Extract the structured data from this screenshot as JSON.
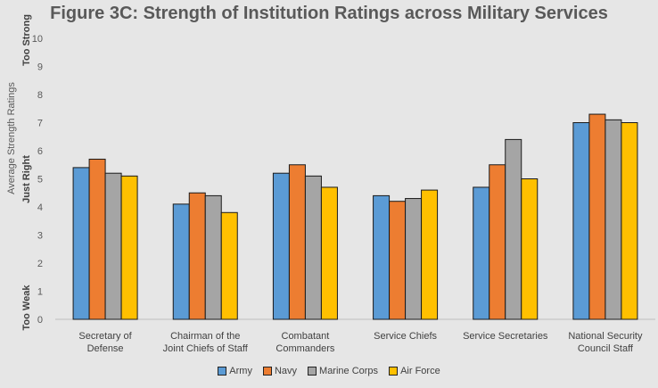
{
  "chart_data": {
    "type": "bar",
    "title": "Figure 3C: Strength of Institution Ratings across Military Services",
    "ylabel": "Average Strength Ratings",
    "y_anchor_labels": {
      "top": "Too Strong",
      "middle": "Just Right",
      "bottom": "Too Weak"
    },
    "ylim": [
      0,
      10
    ],
    "yticks": [
      0,
      1,
      2,
      3,
      4,
      5,
      6,
      7,
      8,
      9,
      10
    ],
    "grid": false,
    "legend_position": "bottom",
    "categories": [
      [
        "Secretary of",
        "Defense"
      ],
      [
        "Chairman of the",
        "Joint Chiefs of Staff"
      ],
      [
        "Combatant",
        "Commanders"
      ],
      [
        "Service Chiefs"
      ],
      [
        "Service Secretaries"
      ],
      [
        "National Security",
        "Council Staff"
      ]
    ],
    "series": [
      {
        "name": "Army",
        "color": "#5b9bd5",
        "values": [
          5.4,
          4.1,
          5.2,
          4.4,
          4.7,
          7.0
        ]
      },
      {
        "name": "Navy",
        "color": "#ed7d31",
        "values": [
          5.7,
          4.5,
          5.5,
          4.2,
          5.5,
          7.3
        ]
      },
      {
        "name": "Marine Corps",
        "color": "#a5a5a5",
        "values": [
          5.2,
          4.4,
          5.1,
          4.3,
          6.4,
          7.1
        ]
      },
      {
        "name": "Air Force",
        "color": "#ffc000",
        "values": [
          5.1,
          3.8,
          4.7,
          4.6,
          5.0,
          7.0
        ]
      }
    ]
  }
}
